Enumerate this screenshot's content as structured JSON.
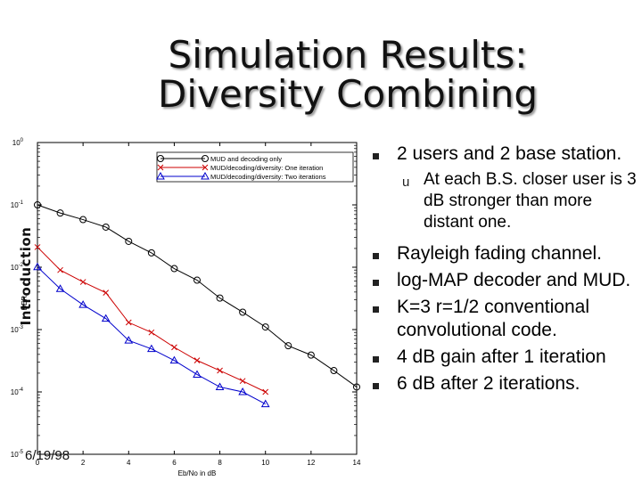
{
  "slide": {
    "title_line1": "Simulation Results:",
    "title_line2": "Diversity Combining",
    "side_label": "Introduction",
    "date": "6/19/98",
    "bullets_a": [
      {
        "text": "2 users and 2 base station."
      }
    ],
    "sub_bullet": "At each B.S. closer user is 3 dB stronger than more distant one.",
    "sub_marker": "u",
    "bullets_b": [
      {
        "text": "Rayleigh fading channel."
      },
      {
        "text": "log-MAP decoder and MUD."
      },
      {
        "text": "K=3 r=1/2 conventional convolutional code."
      },
      {
        "text": "4 dB gain after 1 iteration"
      },
      {
        "text": "6 dB after 2 iterations."
      }
    ]
  },
  "chart_data": {
    "type": "line",
    "title": "",
    "xlabel": "Eb/No in dB",
    "ylabel": "BER",
    "xlim": [
      0,
      14
    ],
    "ylim_log10": [
      -5,
      0
    ],
    "yscale": "log",
    "grid": false,
    "legend_position": "top-right",
    "x_ticks": [
      "0",
      "2",
      "4",
      "6",
      "8",
      "10",
      "12",
      "14"
    ],
    "y_ticks": [
      {
        "base": "10",
        "exp": "0"
      },
      {
        "base": "10",
        "exp": "-1"
      },
      {
        "base": "10",
        "exp": "-2"
      },
      {
        "base": "10",
        "exp": "-3"
      },
      {
        "base": "10",
        "exp": "-4"
      },
      {
        "base": "10",
        "exp": "-5"
      }
    ],
    "series": [
      {
        "name": "MUD and decoding only",
        "marker": "circle",
        "color": "#000000",
        "x": [
          0,
          1,
          2,
          3,
          4,
          5,
          6,
          7,
          8,
          9,
          10,
          11,
          12,
          13,
          14
        ],
        "y": [
          0.1,
          0.074,
          0.058,
          0.044,
          0.026,
          0.017,
          0.0095,
          0.0062,
          0.0032,
          0.0019,
          0.0011,
          0.00055,
          0.00039,
          0.00022,
          0.00012
        ]
      },
      {
        "name": "MUD/decoding/diversity: One iteration",
        "marker": "x",
        "color": "#cc0000",
        "x": [
          0,
          1,
          2,
          3,
          4,
          5,
          6,
          7,
          8,
          9,
          10
        ],
        "y": [
          0.021,
          0.009,
          0.0058,
          0.0039,
          0.0013,
          0.0009,
          0.00052,
          0.00032,
          0.00022,
          0.00015,
          0.0001
        ]
      },
      {
        "name": "MUD/decoding/diversity: Two iterations",
        "marker": "triangle",
        "color": "#0000cc",
        "x": [
          0,
          1,
          2,
          3,
          4,
          5,
          6,
          7,
          8,
          9,
          10
        ],
        "y": [
          0.0101,
          0.0045,
          0.0025,
          0.0015,
          0.00067,
          0.00049,
          0.00032,
          0.00019,
          0.00012,
          0.0001,
          6.4e-05
        ]
      }
    ]
  }
}
